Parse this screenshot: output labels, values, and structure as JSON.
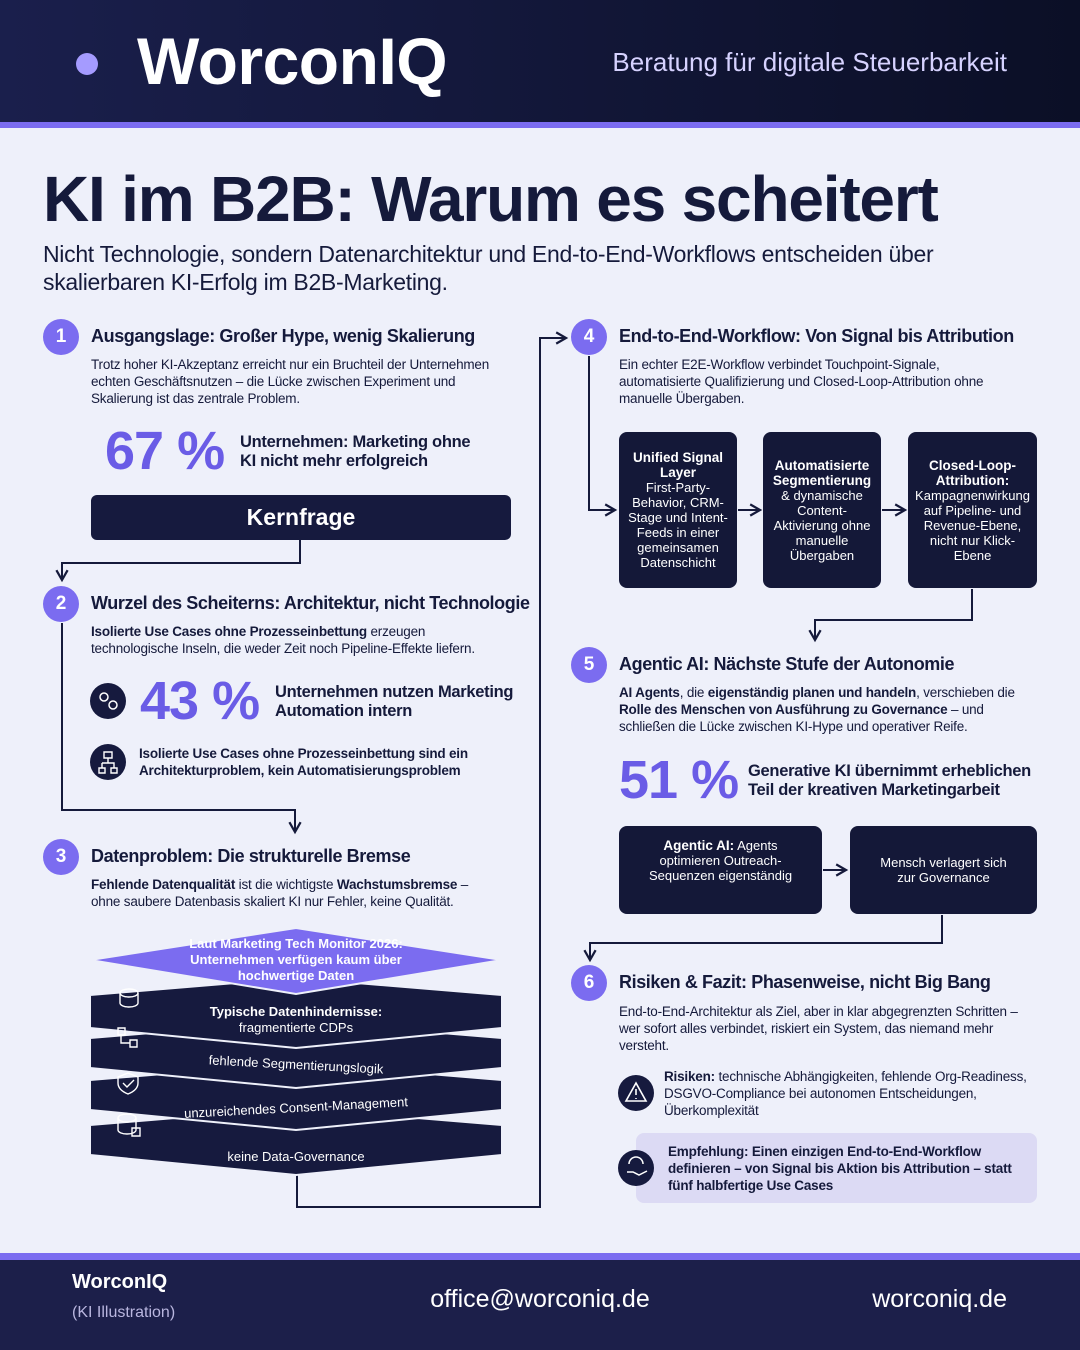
{
  "header": {
    "brand": "WorconIQ",
    "tagline": "Beratung für digitale Steuerbarkeit"
  },
  "title": "KI im B2B: Warum es scheitert",
  "subtitle": "Nicht Technologie, sondern Datenarchitektur und End-to-End-Workflows entscheiden über skalierbaren KI-Erfolg im B2B-Marketing.",
  "sections": [
    {
      "number": "1",
      "heading": "Ausgangslage: Großer Hype, wenig Skalierung",
      "text": [
        {
          "text": "Trotz hoher KI-Akzeptanz erreicht nur ein Bruchteil der Unternehmen echten Geschäftsnutzen – die Lücke zwischen Experiment und Skalierung ist das zentrale Problem.",
          "bold": false
        }
      ],
      "stat": {
        "value": "67 %",
        "label": "Unternehmen: Marketing ohne KI nicht mehr erfolgreich"
      },
      "button": "Kernfrage"
    },
    {
      "number": "2",
      "heading": "Wurzel des Scheiterns: Architektur, nicht Technologie",
      "text": [
        {
          "text": "Isolierte Use Cases ohne Prozesseinbettung",
          "bold": true
        },
        {
          "text": " erzeugen technologische Inseln, die weder Zeit noch Pipeline-Effekte liefern.",
          "bold": false
        }
      ],
      "stat": {
        "value": "43 %",
        "label": "Unternehmen nutzen Marketing Automation intern"
      },
      "note": "Isolierte Use Cases ohne Prozesseinbettung sind ein Architekturproblem, kein Automatisierungsproblem"
    },
    {
      "number": "3",
      "heading": "Datenproblem: Die strukturelle Bremse",
      "text": [
        {
          "text": "Fehlende Datenqualität",
          "bold": true
        },
        {
          "text": " ist die wichtigste ",
          "bold": false
        },
        {
          "text": "Wachstumsbremse",
          "bold": true
        },
        {
          "text": " – ohne saubere Datenbasis skaliert KI nur Fehler, keine Qualität.",
          "bold": false
        }
      ],
      "layers": [
        [
          {
            "text": "Laut Marketing Tech Monitor 2026:",
            "bold": true
          },
          {
            "text": "Unternehmen verfügen kaum über",
            "bold": true
          },
          {
            "text": "hochwertige Daten",
            "bold": true
          }
        ],
        [
          {
            "text": "Typische Datenhindernisse:",
            "bold": true
          },
          {
            "text": "fragmentierte CDPs",
            "bold": false
          }
        ],
        [
          {
            "text": "fehlende Segmentierungslogik",
            "bold": false
          }
        ],
        [
          {
            "text": "unzureichendes Consent-Management",
            "bold": false
          }
        ],
        [
          {
            "text": "keine Data-Governance",
            "bold": false
          }
        ]
      ]
    },
    {
      "number": "4",
      "heading": "End-to-End-Workflow: Von Signal bis Attribution",
      "text": [
        {
          "text": "Ein echter E2E-Workflow verbindet Touchpoint-Signale, automatisierte Qualifizierung und Closed-Loop-Attribution ohne manuelle Übergaben.",
          "bold": false
        }
      ],
      "boxes": [
        {
          "title": "Unified Signal Layer",
          "text": "First-Party-Behavior, CRM-Stage und Intent-Feeds in einer gemeinsamen Datenschicht"
        },
        {
          "title": "Automatisierte Segmentierung",
          "text": "& dynamische Content-Aktivierung ohne manuelle Übergaben"
        },
        {
          "title": "Closed-Loop-Attribution:",
          "text": "Kampagnenwirkung auf Pipeline- und Revenue-Ebene, nicht nur Klick-Ebene"
        }
      ]
    },
    {
      "number": "5",
      "heading": "Agentic AI: Nächste Stufe der Autonomie",
      "text": [
        {
          "text": "AI Agents",
          "bold": true
        },
        {
          "text": ", die ",
          "bold": false
        },
        {
          "text": "eigenständig planen und handeln",
          "bold": true
        },
        {
          "text": ", verschieben die ",
          "bold": false
        },
        {
          "text": "Rolle des Menschen von Ausführung zu Governance",
          "bold": true
        },
        {
          "text": " – und schließen die Lücke zwischen KI-Hype und operativer Reife.",
          "bold": false
        }
      ],
      "stat": {
        "value": "51 %",
        "label": "Generative KI übernimmt erheblichen Teil der kreativen Marketingarbeit"
      },
      "boxes": [
        {
          "title": "Agentic AI:",
          "text": "Agents optimieren Outreach-Sequenzen eigenständig"
        },
        {
          "title": "",
          "text": "Mensch verlagert sich zur Governance"
        }
      ]
    },
    {
      "number": "6",
      "heading": "Risiken & Fazit: Phasenweise, nicht Big Bang",
      "text": [
        {
          "text": "End-to-End-Architektur als Ziel, aber in klar abgegrenzten Schritten – wer sofort alles verbindet, riskiert ein System, das niemand mehr versteht.",
          "bold": false
        }
      ],
      "risks": [
        {
          "text": "Risiken:",
          "bold": true
        },
        {
          "text": " technische Abhängigkeiten, fehlende Org-Readiness, DSGVO-Compliance bei autonomen Entscheidungen, Überkomplexität",
          "bold": false
        }
      ],
      "recommendation": "Empfehlung: Einen einzigen End-to-End-Workflow definieren – von Signal bis Aktion bis Attribution – statt fünf halbfertige Use Cases"
    }
  ],
  "footer": {
    "brand": "WorconIQ",
    "note": "(KI Illustration)",
    "email": "office@worconiq.de",
    "website": "worconiq.de"
  }
}
